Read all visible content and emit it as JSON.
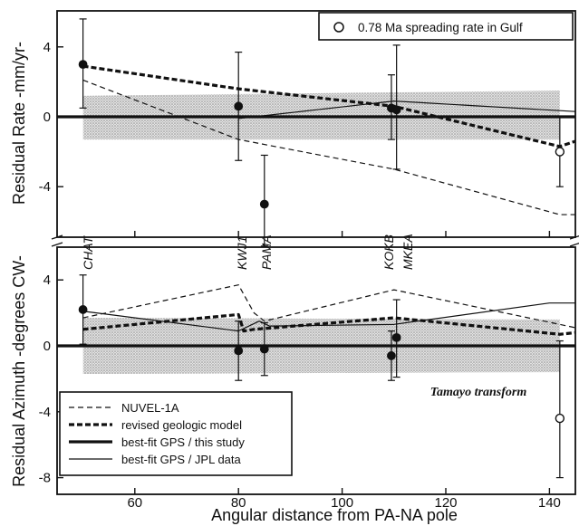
{
  "chart_data": [
    {
      "type": "line",
      "panel": "top",
      "ylabel": "Residual Rate -mm/yr-",
      "xlim": [
        45,
        145
      ],
      "ylim": [
        -6.8,
        6.0
      ],
      "yticks": [
        4,
        0,
        -4
      ],
      "ytick_labels": [
        "4",
        "0",
        "-4"
      ],
      "band": {
        "x": [
          50,
          142
        ],
        "upper": [
          1.2,
          1.5
        ],
        "lower": [
          -1.3,
          -1.3
        ]
      },
      "series": [
        {
          "name": "NUVEL-1A",
          "style": "thin-dashed",
          "x": [
            50,
            80,
            110,
            142,
            145
          ],
          "y": [
            2.1,
            -1.3,
            -3.0,
            -5.6,
            -5.6
          ]
        },
        {
          "name": "revised geologic model",
          "style": "thick-dashed",
          "x": [
            50,
            80,
            110,
            142,
            145
          ],
          "y": [
            2.9,
            1.6,
            0.6,
            -1.7,
            -1.4
          ]
        },
        {
          "name": "best-fit GPS / this study",
          "style": "thick-solid",
          "x": [
            45,
            145
          ],
          "y": [
            0,
            0
          ]
        },
        {
          "name": "best-fit GPS / JPL data",
          "style": "thin-solid",
          "x": [
            80,
            110,
            145
          ],
          "y": [
            -0.1,
            0.9,
            0.3
          ]
        }
      ],
      "points": [
        {
          "label": "CHAT",
          "x": 50,
          "y": 3.0,
          "err_low": 0.5,
          "err_high": 5.6,
          "marker": "filled"
        },
        {
          "label": "KWJ1",
          "x": 80,
          "y": 0.6,
          "err_low": -2.5,
          "err_high": 3.7,
          "marker": "filled"
        },
        {
          "label": "PAMA",
          "x": 85,
          "y": -5.0,
          "err_low": -7.4,
          "err_high": -2.2,
          "marker": "filled"
        },
        {
          "label": "KOKB",
          "x": 109.5,
          "y": 0.5,
          "err_low": -1.3,
          "err_high": 2.4,
          "marker": "filled"
        },
        {
          "label": "MKEA",
          "x": 110.5,
          "y": 0.4,
          "err_low": -3.0,
          "err_high": 4.1,
          "marker": "filled"
        },
        {
          "label": "",
          "x": 142,
          "y": -2.0,
          "err_low": -4.0,
          "err_high": 0,
          "marker": "open"
        }
      ],
      "legend": "top-right",
      "legend_entries": [
        "0.78 Ma spreading rate in Gulf"
      ]
    },
    {
      "type": "line",
      "panel": "bottom",
      "ylabel": "Residual Azimuth -degrees CW-",
      "xlabel": "Angular distance from PA-NA pole",
      "xlim": [
        45,
        145
      ],
      "ylim": [
        -8,
        6.0
      ],
      "xticks": [
        60,
        80,
        100,
        120,
        140
      ],
      "xtick_labels": [
        "60",
        "80",
        "100",
        "120",
        "140"
      ],
      "yticks": [
        4,
        0,
        -4,
        -8
      ],
      "ytick_labels": [
        "4",
        "0",
        "-4",
        "-8"
      ],
      "band": {
        "x": [
          50,
          142
        ],
        "upper": [
          1.7,
          1.6
        ],
        "lower": [
          -1.7,
          -1.6
        ]
      },
      "series": [
        {
          "name": "NUVEL-1A",
          "style": "thin-dashed",
          "x": [
            50,
            80,
            83,
            85,
            110,
            142,
            145
          ],
          "y": [
            1.7,
            3.7,
            2.0,
            1.5,
            3.4,
            1.3,
            1.1
          ]
        },
        {
          "name": "revised geologic model",
          "style": "thick-dashed",
          "x": [
            50,
            80,
            81,
            83,
            110,
            142,
            145
          ],
          "y": [
            1.0,
            1.9,
            0.9,
            1.0,
            1.7,
            0.7,
            0.8
          ]
        },
        {
          "name": "best-fit GPS / this study",
          "style": "thick-solid",
          "x": [
            45,
            145
          ],
          "y": [
            0,
            0
          ]
        },
        {
          "name": "best-fit GPS / JPL data",
          "style": "thin-solid",
          "x": [
            50,
            80,
            84,
            86,
            110,
            140,
            145
          ],
          "y": [
            2.1,
            0.9,
            1.5,
            1.2,
            1.3,
            2.6,
            2.6
          ]
        }
      ],
      "points": [
        {
          "label": "CHAT",
          "x": 50,
          "y": 2.2,
          "err_low": 0.1,
          "err_high": 4.3,
          "marker": "filled"
        },
        {
          "label": "KWJ1",
          "x": 80,
          "y": -0.3,
          "err_low": -2.1,
          "err_high": 1.5,
          "marker": "filled"
        },
        {
          "label": "PAMA",
          "x": 85,
          "y": -0.2,
          "err_low": -1.8,
          "err_high": 1.4,
          "marker": "filled"
        },
        {
          "label": "KOKB",
          "x": 109.5,
          "y": -0.6,
          "err_low": -2.1,
          "err_high": 0.9,
          "marker": "filled"
        },
        {
          "label": "MKEA",
          "x": 110.5,
          "y": 0.5,
          "err_low": -1.9,
          "err_high": 2.8,
          "marker": "filled"
        },
        {
          "label": "",
          "x": 142,
          "y": -4.4,
          "err_low": -8.0,
          "err_high": 0.3,
          "marker": "open"
        }
      ],
      "annotations": [
        "Tamayo transform"
      ],
      "legend": "bottom-left"
    }
  ],
  "site_labels": [
    "CHAT",
    "KWJ1",
    "PAMA",
    "KOKB",
    "MKEA"
  ],
  "legend_lower": {
    "entries": [
      {
        "label": "NUVEL-1A",
        "style": "thin-dashed"
      },
      {
        "label": "revised geologic model",
        "style": "thick-dashed"
      },
      {
        "label": "best-fit GPS / this study",
        "style": "thick-solid"
      },
      {
        "label": "best-fit GPS / JPL data",
        "style": "thin-solid"
      }
    ]
  },
  "legend_upper": {
    "label": "0.78 Ma spreading rate in Gulf"
  },
  "annotation": "Tamayo transform",
  "axis": {
    "ylabel_top": "Residual Rate -mm/yr-",
    "ylabel_bottom": "Residual Azimuth -degrees CW-",
    "xlabel": "Angular distance from PA-NA pole"
  },
  "colors": {
    "ink": "#111111",
    "band": "#bdbdbd",
    "background": "#ffffff"
  }
}
